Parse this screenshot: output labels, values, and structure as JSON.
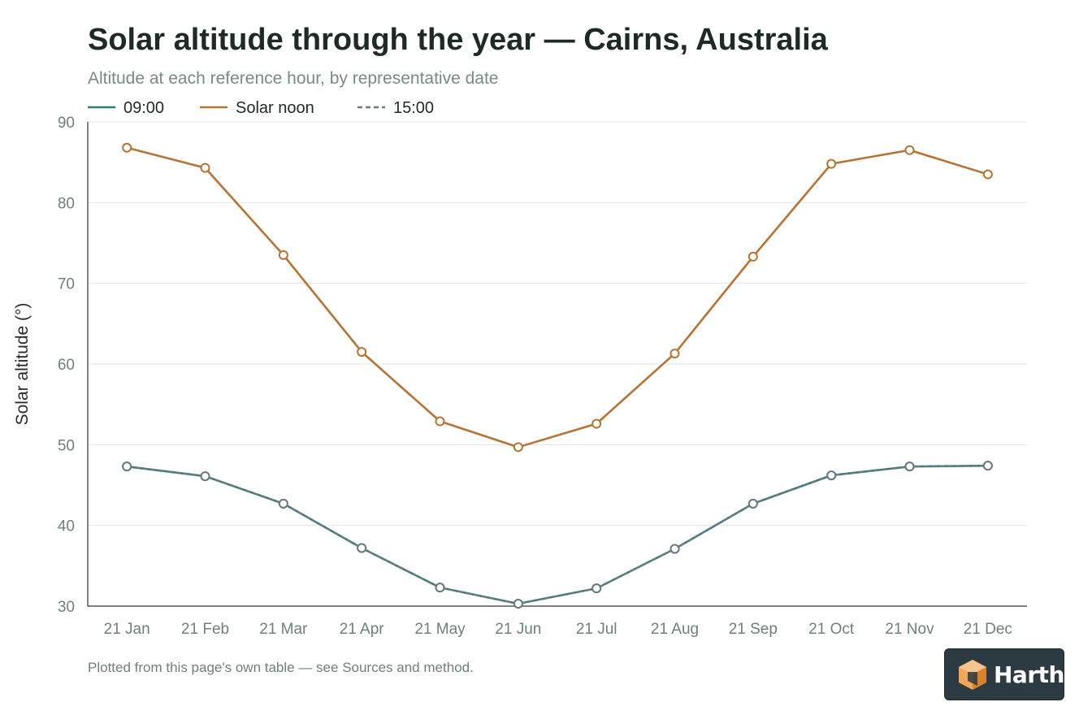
{
  "page": {
    "title": "Solar altitude through the year — Cairns, Australia",
    "subtitle": "Altitude at each reference hour, by representative date",
    "footnote": "Plotted from this page's own table — see Sources and method.",
    "brand": "Harth"
  },
  "colors": {
    "series_0900": "#2e7d77",
    "series_noon": "#b87333",
    "series_1500": "#6b7a80",
    "grid": "#e6e6e6",
    "axis": "#333333",
    "tick_text": "#6f7f7b",
    "brand_bg": "#2c3a42",
    "brand_accent": "#f2a65a"
  },
  "chart_data": {
    "type": "line",
    "title": "Solar altitude through the year — Cairns, Australia",
    "subtitle": "Altitude at each reference hour, by representative date",
    "xlabel": "",
    "ylabel": "Solar altitude (°)",
    "ylim": [
      30,
      90
    ],
    "yticks": [
      30,
      40,
      50,
      60,
      70,
      80,
      90
    ],
    "grid": true,
    "legend_position": "top-left",
    "categories": [
      "21 Jan",
      "21 Feb",
      "21 Mar",
      "21 Apr",
      "21 May",
      "21 Jun",
      "21 Jul",
      "21 Aug",
      "21 Sep",
      "21 Oct",
      "21 Nov",
      "21 Dec"
    ],
    "series": [
      {
        "name": "09:00",
        "key": "series_0900",
        "dashed": false,
        "values": [
          47.3,
          46.1,
          42.7,
          37.2,
          32.3,
          30.3,
          32.2,
          37.1,
          42.7,
          46.2,
          47.3,
          47.4
        ]
      },
      {
        "name": "Solar noon",
        "key": "series_noon",
        "dashed": false,
        "values": [
          86.8,
          84.3,
          73.5,
          61.5,
          52.9,
          49.7,
          52.6,
          61.3,
          73.3,
          84.8,
          86.5,
          83.5
        ]
      },
      {
        "name": "15:00",
        "key": "series_1500",
        "dashed": true,
        "values": [
          47.3,
          46.1,
          42.7,
          37.2,
          32.3,
          30.3,
          32.2,
          37.1,
          42.7,
          46.2,
          47.3,
          47.4
        ]
      }
    ]
  }
}
